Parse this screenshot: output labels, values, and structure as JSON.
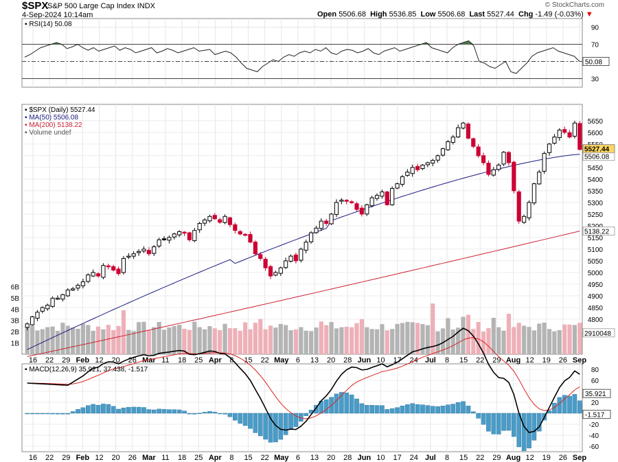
{
  "header": {
    "symbol": "$SPX",
    "name": "S&P 500 Large Cap Index",
    "exchange": "INDX",
    "datetime": "4-Sep-2024 10:14am",
    "copyright": "© StockCharts.com",
    "open_label": "Open",
    "open": "5506.68",
    "high_label": "High",
    "high": "5536.85",
    "low_label": "Low",
    "low": "5506.68",
    "last_label": "Last",
    "last": "5527.44",
    "chg_label": "Chg",
    "chg": "-1.49 (-0.03%)",
    "chg_arrow": "▼"
  },
  "colors": {
    "up_candle": "#000000",
    "down_candle": "#cc0033",
    "ma50": "#1a1a80",
    "ma200": "#cc2233",
    "volume_up": "#b4b4b4",
    "volume_down": "#eeb0b8",
    "macd_line": "#000000",
    "signal_line": "#dd2222",
    "histogram": "#4a9cc8",
    "rsi_overbought_fill": "#4f7a4f"
  },
  "chart_data": [
    {
      "panel": "rsi",
      "type": "line",
      "legend": "RSI(14) 50.08",
      "ylim": [
        20,
        100
      ],
      "yticks": [
        30,
        50,
        70,
        90
      ],
      "overbought": 70,
      "oversold": 30,
      "last_value": "50.08",
      "values": [
        55,
        58,
        62,
        66,
        68,
        70,
        72,
        70,
        65,
        67,
        70,
        66,
        63,
        66,
        62,
        64,
        66,
        68,
        63,
        66,
        64,
        60,
        62,
        64,
        66,
        60,
        62,
        65,
        63,
        60,
        62,
        64,
        66,
        62,
        63,
        64,
        58,
        60,
        62,
        60,
        55,
        48,
        42,
        40,
        38,
        44,
        48,
        52,
        50,
        55,
        58,
        56,
        60,
        62,
        60,
        64,
        62,
        66,
        60,
        58,
        62,
        64,
        63,
        60,
        62,
        65,
        60,
        58,
        62,
        64,
        66,
        62,
        64,
        66,
        68,
        70,
        72,
        66,
        64,
        62,
        60,
        66,
        70,
        72,
        74,
        68,
        50,
        48,
        44,
        42,
        46,
        50,
        38,
        36,
        42,
        48,
        56,
        60,
        62,
        64,
        66,
        62,
        60,
        58,
        56,
        50
      ]
    },
    {
      "panel": "price",
      "type": "candlestick",
      "legend": [
        "$SPX (Daily) 5527.44",
        "MA(50) 5506.08",
        "MA(200) 5138.22",
        "Volume undef"
      ],
      "ylim": [
        4650,
        5720
      ],
      "yticks": [
        4750,
        4800,
        4850,
        4900,
        4950,
        5000,
        5050,
        5100,
        5150,
        5200,
        5250,
        5300,
        5350,
        5400,
        5450,
        5500,
        5550,
        5600,
        5650
      ],
      "x_tick_labels": [
        "16",
        "22",
        "29",
        "Feb",
        "12",
        "20",
        "26",
        "Mar",
        "11",
        "18",
        "25",
        "Apr",
        "8",
        "15",
        "22",
        "May",
        "6",
        "13",
        "20",
        "28",
        "Jun",
        "10",
        "17",
        "24",
        "Jul",
        "8",
        "15",
        "22",
        "29",
        "Aug",
        "12",
        "19",
        "26",
        "Sep"
      ],
      "last_price_label": "5527.44",
      "ma50_label": "5506.08",
      "ma200_label": "5138.22",
      "close": [
        4780,
        4810,
        4830,
        4850,
        4860,
        4890,
        4890,
        4905,
        4925,
        4930,
        4945,
        4960,
        4990,
        5000,
        4985,
        5030,
        5025,
        5010,
        4995,
        5060,
        5070,
        5080,
        5090,
        5100,
        5080,
        5110,
        5140,
        5140,
        5150,
        5165,
        5175,
        5170,
        5140,
        5180,
        5210,
        5225,
        5240,
        5230,
        5215,
        5240,
        5205,
        5180,
        5165,
        5160,
        5130,
        5080,
        5060,
        5020,
        4985,
        5000,
        5020,
        5050,
        5070,
        5050,
        5100,
        5130,
        5170,
        5190,
        5220,
        5210,
        5250,
        5300,
        5310,
        5305,
        5300,
        5270,
        5250,
        5290,
        5320,
        5330,
        5345,
        5290,
        5360,
        5380,
        5410,
        5430,
        5450,
        5440,
        5460,
        5470,
        5480,
        5500,
        5530,
        5560,
        5580,
        5620,
        5640,
        5575,
        5540,
        5500,
        5470,
        5420,
        5440,
        5460,
        5515,
        5470,
        5350,
        5220,
        5240,
        5300,
        5380,
        5430,
        5510,
        5550,
        5580,
        5610,
        5600,
        5580,
        5640,
        5527
      ],
      "volume_ylim": [
        0,
        7
      ],
      "volume_ticks": [
        "1B",
        "2B",
        "3B",
        "4B",
        "5B",
        "6B"
      ],
      "volume_last_label": "2910048"
    },
    {
      "panel": "macd",
      "type": "line+histogram",
      "legend": "MACD(12,26,9) 35.921, 37.438, -1.517",
      "ylim": [
        -70,
        90
      ],
      "yticks": [
        -60,
        -40,
        -20,
        0,
        20,
        40,
        60,
        80
      ],
      "macd_label": "35.921",
      "histogram_label": "-1.517",
      "x_tick_labels": [
        "16",
        "22",
        "29",
        "Feb",
        "12",
        "20",
        "26",
        "Mar",
        "11",
        "18",
        "25",
        "Apr",
        "8",
        "15",
        "22",
        "May",
        "6",
        "13",
        "20",
        "28",
        "Jun",
        "10",
        "17",
        "24",
        "Jul",
        "8",
        "15",
        "22",
        "29",
        "Aug",
        "12",
        "19",
        "26",
        "Sep"
      ]
    }
  ]
}
